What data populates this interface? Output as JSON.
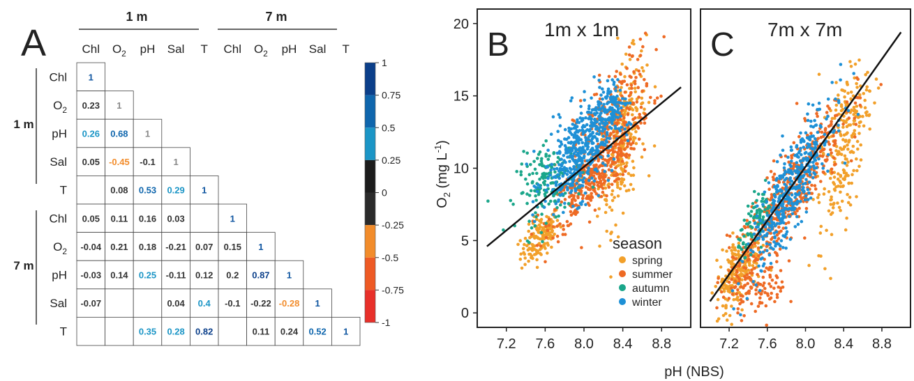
{
  "chart_data": [
    {
      "type": "heatmap",
      "panel": "A",
      "group_labels": [
        "1 m",
        "7 m"
      ],
      "variables": [
        "Chl",
        "O2",
        "pH",
        "Sal",
        "T",
        "Chl",
        "O2",
        "pH",
        "Sal",
        "T"
      ],
      "variable_display": [
        {
          "base": "Chl",
          "sub": ""
        },
        {
          "base": "O",
          "sub": "2"
        },
        {
          "base": "pH",
          "sub": ""
        },
        {
          "base": "Sal",
          "sub": ""
        },
        {
          "base": "T",
          "sub": ""
        },
        {
          "base": "Chl",
          "sub": ""
        },
        {
          "base": "O",
          "sub": "2"
        },
        {
          "base": "pH",
          "sub": ""
        },
        {
          "base": "Sal",
          "sub": ""
        },
        {
          "base": "T",
          "sub": ""
        }
      ],
      "lower_triangle": [
        [
          "1"
        ],
        [
          "0.23",
          "1"
        ],
        [
          "0.26",
          "0.68",
          "1"
        ],
        [
          "0.05",
          "-0.45",
          "-0.1",
          "1"
        ],
        [
          "",
          "0.08",
          "0.53",
          "0.29",
          "1"
        ],
        [
          "0.05",
          "0.11",
          "0.16",
          "0.03",
          "",
          "1"
        ],
        [
          "-0.04",
          "0.21",
          "0.18",
          "-0.21",
          "0.07",
          "0.15",
          "1"
        ],
        [
          "-0.03",
          "0.14",
          "0.25",
          "-0.11",
          "0.12",
          "0.2",
          "0.87",
          "1"
        ],
        [
          "-0.07",
          "",
          "",
          "0.04",
          "0.4",
          "-0.1",
          "-0.22",
          "-0.28",
          "1"
        ],
        [
          "",
          "",
          "0.35",
          "0.28",
          "0.82",
          "",
          "0.11",
          "0.24",
          "0.52",
          "1"
        ]
      ],
      "color_scale": {
        "range": [
          -1,
          1
        ],
        "ticks": [
          "1",
          "0.75",
          "0.5",
          "0.25",
          "0",
          "-0.25",
          "-0.5",
          "-0.75",
          "-1"
        ],
        "bins": [
          {
            "from": 0.75,
            "to": 1.0,
            "color": "#0b3f8a"
          },
          {
            "from": 0.5,
            "to": 0.75,
            "color": "#0f66ad"
          },
          {
            "from": 0.25,
            "to": 0.5,
            "color": "#1b95c6"
          },
          {
            "from": 0.0,
            "to": 0.25,
            "color": "#1c1c1c"
          },
          {
            "from": -0.25,
            "to": 0.0,
            "color": "#2b2b2b"
          },
          {
            "from": -0.5,
            "to": -0.25,
            "color": "#f28c2b"
          },
          {
            "from": -0.75,
            "to": -0.5,
            "color": "#ee5a24"
          },
          {
            "from": -1.0,
            "to": -0.75,
            "color": "#e8302a"
          }
        ]
      }
    },
    {
      "type": "scatter",
      "panel": "B",
      "title": "1m x 1m",
      "xlim": [
        6.9,
        9.1
      ],
      "ylim": [
        -1,
        21
      ],
      "xticks": [
        "7.2",
        "7.6",
        "8.0",
        "8.4",
        "8.8"
      ],
      "yticks": [
        "0",
        "5",
        "10",
        "15",
        "20"
      ],
      "fit_line": {
        "x": [
          7.0,
          9.0
        ],
        "y": [
          4.6,
          15.6
        ]
      },
      "series": [
        {
          "name": "spring",
          "color": "#f2a02a",
          "clouds": [
            {
              "cx": 7.55,
              "cy": 5.2,
              "sx": 0.1,
              "sy": 0.9,
              "r": 0.6,
              "n": 150
            },
            {
              "cx": 8.4,
              "cy": 12.0,
              "sx": 0.12,
              "sy": 2.8,
              "r": 0.55,
              "n": 260
            }
          ]
        },
        {
          "name": "summer",
          "color": "#ee6a24",
          "clouds": [
            {
              "cx": 8.1,
              "cy": 9.5,
              "sx": 0.22,
              "sy": 1.8,
              "r": 0.82,
              "n": 380
            },
            {
              "cx": 8.3,
              "cy": 13.5,
              "sx": 0.2,
              "sy": 2.2,
              "r": 0.6,
              "n": 200
            }
          ]
        },
        {
          "name": "autumn",
          "color": "#1aa68a",
          "clouds": [
            {
              "cx": 7.65,
              "cy": 9.0,
              "sx": 0.17,
              "sy": 1.3,
              "r": 0.3,
              "n": 170
            }
          ]
        },
        {
          "name": "winter",
          "color": "#1e90d6",
          "clouds": [
            {
              "cx": 7.95,
              "cy": 11.0,
              "sx": 0.18,
              "sy": 1.8,
              "r": 0.5,
              "n": 430
            },
            {
              "cx": 8.25,
              "cy": 14.0,
              "sx": 0.1,
              "sy": 1.0,
              "r": 0.4,
              "n": 120
            }
          ]
        }
      ]
    },
    {
      "type": "scatter",
      "panel": "C",
      "title": "7m x 7m",
      "xlim": [
        6.9,
        9.1
      ],
      "ylim": [
        -1,
        21
      ],
      "xticks": [
        "7.2",
        "7.6",
        "8.0",
        "8.4",
        "8.8"
      ],
      "yticks": [
        "0",
        "5",
        "10",
        "15",
        "20"
      ],
      "fit_line": {
        "x": [
          7.0,
          9.0
        ],
        "y": [
          0.8,
          19.4
        ]
      },
      "series": [
        {
          "name": "spring",
          "color": "#f2a02a",
          "clouds": [
            {
              "cx": 7.3,
              "cy": 3.0,
              "sx": 0.12,
              "sy": 1.5,
              "r": 0.6,
              "n": 220
            },
            {
              "cx": 8.4,
              "cy": 11.5,
              "sx": 0.13,
              "sy": 3.0,
              "r": 0.6,
              "n": 240
            }
          ]
        },
        {
          "name": "summer",
          "color": "#ee6a24",
          "clouds": [
            {
              "cx": 7.8,
              "cy": 8.0,
              "sx": 0.3,
              "sy": 3.2,
              "r": 0.88,
              "n": 480
            },
            {
              "cx": 7.5,
              "cy": 1.5,
              "sx": 0.15,
              "sy": 0.8,
              "r": 0.2,
              "n": 90
            }
          ]
        },
        {
          "name": "autumn",
          "color": "#1aa68a",
          "clouds": [
            {
              "cx": 7.5,
              "cy": 6.5,
              "sx": 0.1,
              "sy": 1.0,
              "r": 0.6,
              "n": 90
            }
          ]
        },
        {
          "name": "winter",
          "color": "#1e90d6",
          "clouds": [
            {
              "cx": 7.85,
              "cy": 8.5,
              "sx": 0.22,
              "sy": 2.8,
              "r": 0.86,
              "n": 440
            }
          ]
        }
      ]
    }
  ],
  "panels": {
    "a": {
      "letter": "A",
      "group_top_left": "1 m",
      "group_top_right": "7 m",
      "group_side_top": "1 m",
      "group_side_bottom": "7 m"
    },
    "b": {
      "letter": "B",
      "title": "1m x 1m"
    },
    "c": {
      "letter": "C",
      "title": "7m x 7m"
    }
  },
  "axes": {
    "x_label": "pH (NBS)",
    "y_label_base": "O",
    "y_label_sub": "2",
    "y_label_rest": " (mg L",
    "y_label_sup": "-1",
    "y_label_close": ")"
  },
  "legend": {
    "title": "season",
    "items": [
      {
        "label": "spring",
        "color": "#f2a02a"
      },
      {
        "label": "summer",
        "color": "#ee6a24"
      },
      {
        "label": "autumn",
        "color": "#1aa68a"
      },
      {
        "label": "winter",
        "color": "#1e90d6"
      }
    ]
  }
}
